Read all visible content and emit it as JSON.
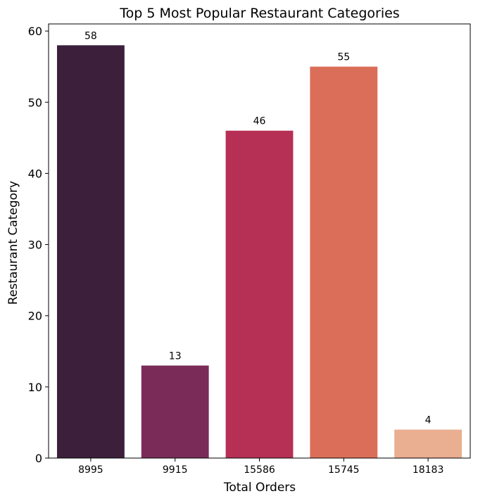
{
  "chart_data": {
    "type": "bar",
    "title": "Top 5 Most Popular Restaurant Categories",
    "xlabel": "Total Orders",
    "ylabel": "Restaurant Category",
    "categories": [
      "8995",
      "9915",
      "15586",
      "15745",
      "18183"
    ],
    "values": [
      58,
      13,
      46,
      55,
      4
    ],
    "data_labels": [
      "58",
      "13",
      "46",
      "55",
      "4"
    ],
    "ylim": [
      0,
      61
    ],
    "yticks": [
      0,
      10,
      20,
      30,
      40,
      50,
      60
    ],
    "ytick_labels": [
      "0",
      "10",
      "20",
      "30",
      "40",
      "50",
      "60"
    ],
    "colors": [
      "#3b1f3b",
      "#7a2b58",
      "#b63055",
      "#db6e59",
      "#eaae90"
    ],
    "grid": false,
    "legend": "none"
  }
}
